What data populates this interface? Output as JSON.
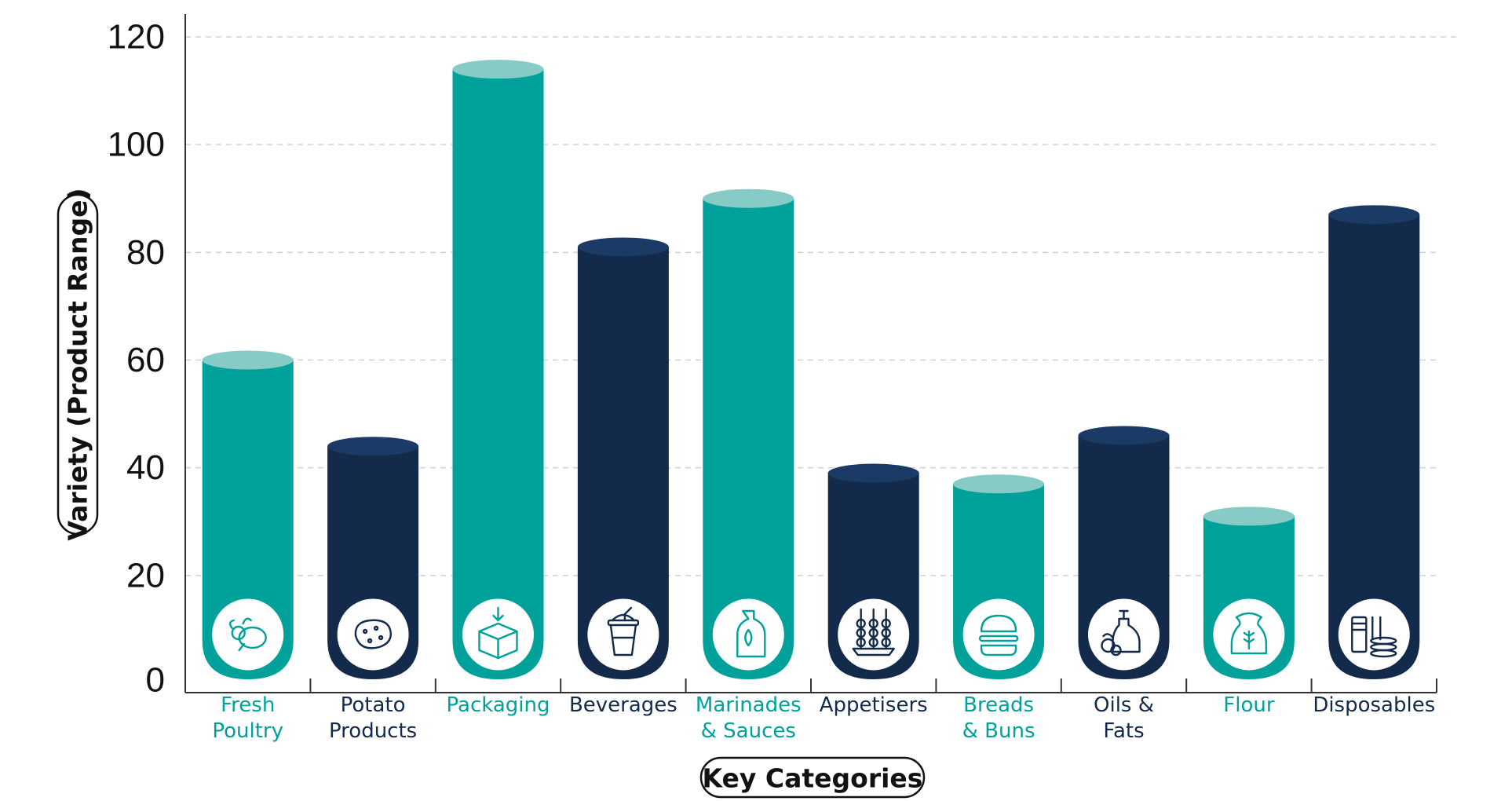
{
  "chart_data": {
    "type": "bar",
    "xlabel": "Key Categories",
    "ylabel": "Variety (Product Range)",
    "ylim": [
      0,
      120
    ],
    "yticks": [
      0,
      20,
      40,
      60,
      80,
      100,
      120
    ],
    "grid": "horizontal-dashed",
    "categories": [
      {
        "lines": [
          "Fresh",
          "Poultry"
        ],
        "value": 60,
        "color": "teal",
        "icon": "poultry-icon"
      },
      {
        "lines": [
          "Potato",
          "Products"
        ],
        "value": 44,
        "color": "navy",
        "icon": "potato-icon"
      },
      {
        "lines": [
          "Packaging"
        ],
        "value": 114,
        "color": "teal",
        "icon": "box-icon"
      },
      {
        "lines": [
          "Beverages"
        ],
        "value": 81,
        "color": "navy",
        "icon": "cup-icon"
      },
      {
        "lines": [
          "Marinades",
          "& Sauces"
        ],
        "value": 90,
        "color": "teal",
        "icon": "bottle-icon"
      },
      {
        "lines": [
          "Appetisers"
        ],
        "value": 39,
        "color": "navy",
        "icon": "skewers-icon"
      },
      {
        "lines": [
          "Breads",
          "& Buns"
        ],
        "value": 37,
        "color": "teal",
        "icon": "burger-icon"
      },
      {
        "lines": [
          "Oils &",
          "Fats"
        ],
        "value": 46,
        "color": "navy",
        "icon": "oil-icon"
      },
      {
        "lines": [
          "Flour"
        ],
        "value": 31,
        "color": "teal",
        "icon": "flour-sack-icon"
      },
      {
        "lines": [
          "Disposables"
        ],
        "value": 87,
        "color": "navy",
        "icon": "cups-plates-icon"
      }
    ],
    "colors": {
      "teal": "#00a19a",
      "teal_top": "#86cbc6",
      "teal_label": "#00a19a",
      "navy": "#132a4b",
      "navy_top": "#1b3a66",
      "navy_label": "#132a4b",
      "grid": "#d0d0d0",
      "axis": "#333333"
    }
  }
}
